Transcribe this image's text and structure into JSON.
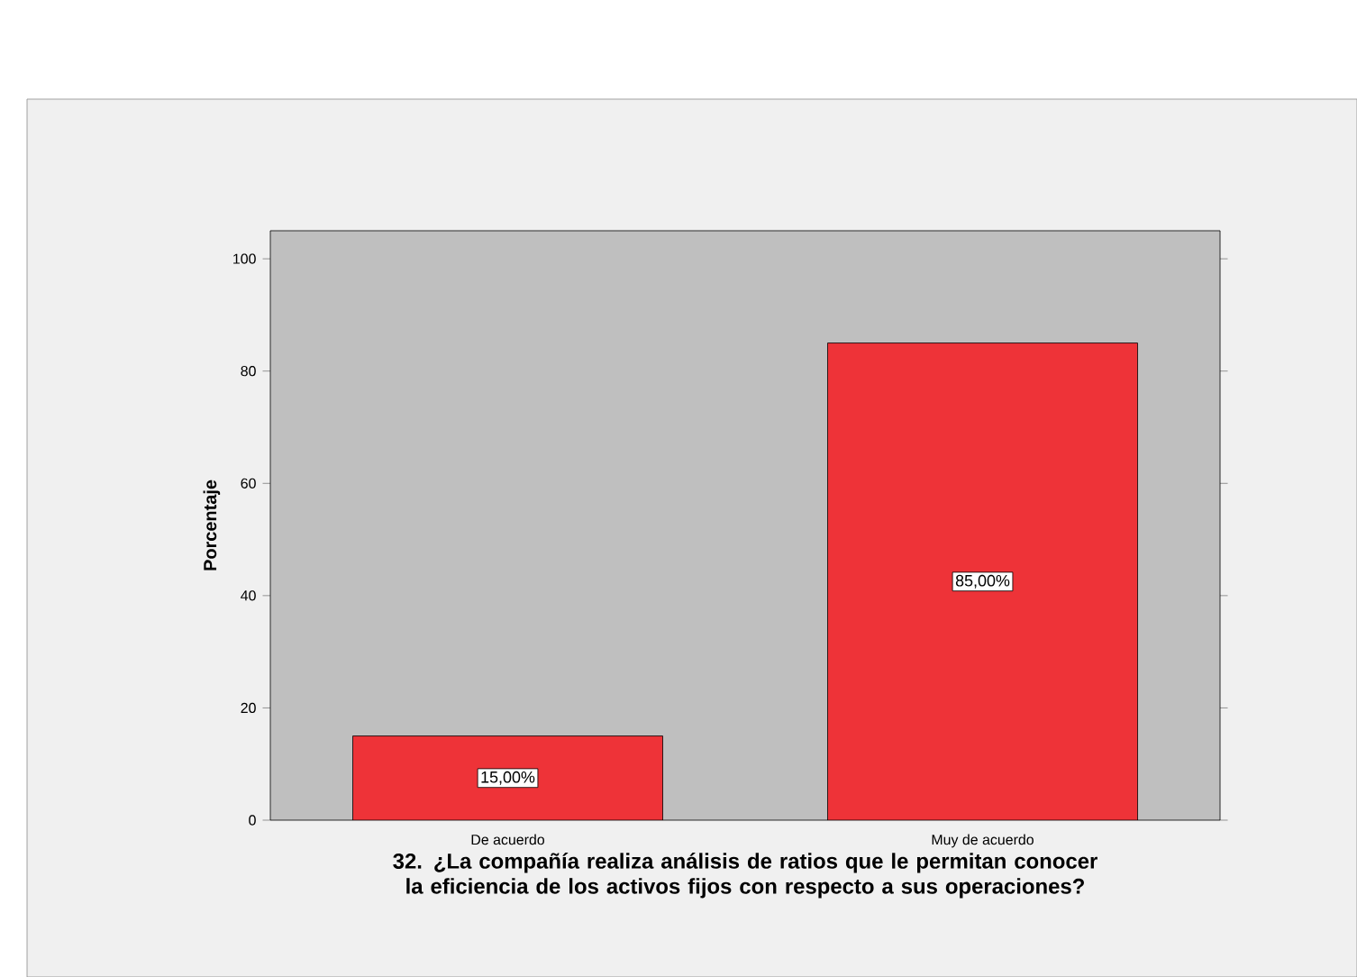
{
  "chart_data": {
    "type": "bar",
    "xlabel": "32. ¿La compañía realiza análisis de ratios que le permitan conocer la eficiencia de los activos fijos con respecto a sus operaciones?",
    "ylabel": "Porcentaje",
    "categories": [
      "De acuerdo",
      "Muy de acuerdo"
    ],
    "values": [
      15,
      85
    ],
    "value_labels": [
      "15,00%",
      "85,00%"
    ],
    "color": "#ee3338",
    "ylim": [
      0,
      105
    ],
    "yticks": [
      0,
      20,
      40,
      60,
      80,
      100
    ]
  }
}
